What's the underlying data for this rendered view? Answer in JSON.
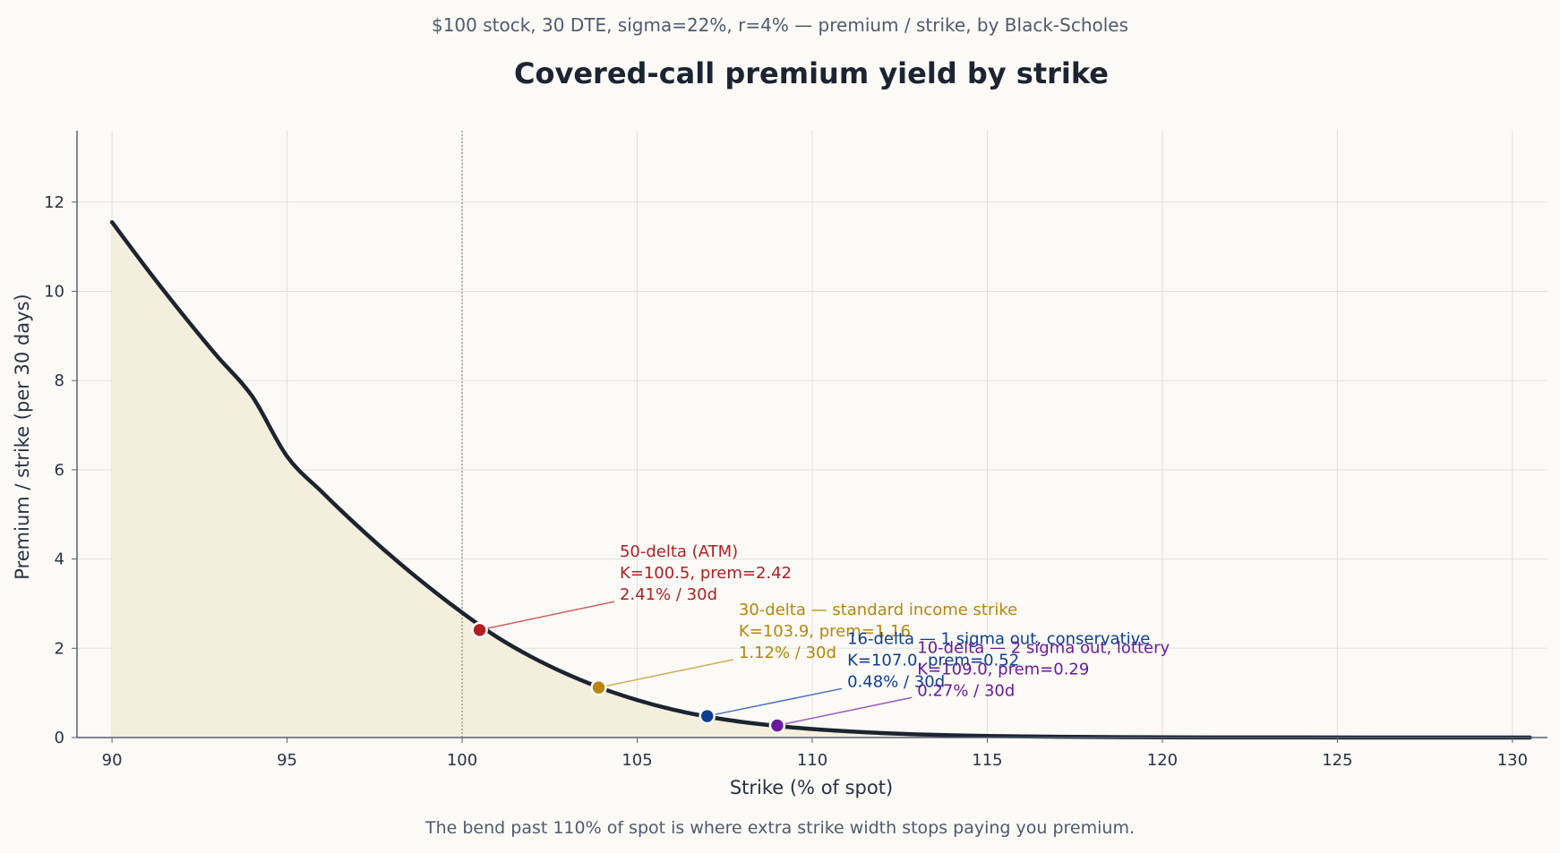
{
  "subtitle": "$100 stock, 30 DTE, sigma=22%, r=4% — premium / strike, by Black-Scholes",
  "caption": "The bend past 110% of spot is where extra strike width stops paying you premium.",
  "colors": {
    "curve": "#1c2331",
    "fill": "#f4eedc",
    "grid": "#e4e1d8",
    "axis": "#5a6070",
    "atm_line": "#8a8a8a",
    "background": "#fbfaf6"
  },
  "chart_data": {
    "type": "area",
    "title": "Covered-call premium yield by strike",
    "xlabel": "Strike (% of spot)",
    "ylabel": "Premium / strike  (per 30 days)",
    "xlim": [
      89,
      131
    ],
    "ylim": [
      0,
      13.6
    ],
    "xticks": [
      90,
      95,
      100,
      105,
      110,
      115,
      120,
      125,
      130
    ],
    "yticks": [
      0,
      2,
      4,
      6,
      8,
      10,
      12
    ],
    "grid": true,
    "spot_reference_x": 100,
    "curve_x": [
      90,
      91,
      92,
      93,
      94,
      95,
      96,
      97,
      98,
      99,
      100,
      101,
      102,
      103,
      104,
      105,
      106,
      107,
      108,
      109,
      110,
      111,
      112,
      113,
      114,
      115,
      116,
      117,
      118,
      119,
      120,
      122,
      124,
      126,
      128,
      130.5
    ],
    "curve_y": [
      11.55,
      10.5,
      9.5,
      8.55,
      7.65,
      6.3,
      5.5,
      4.75,
      4.05,
      3.4,
      2.8,
      2.25,
      1.8,
      1.42,
      1.1,
      0.84,
      0.63,
      0.47,
      0.35,
      0.26,
      0.19,
      0.14,
      0.1,
      0.07,
      0.05,
      0.035,
      0.025,
      0.018,
      0.012,
      0.008,
      0.005,
      0.003,
      0.002,
      0.001,
      0.001,
      0.0
    ],
    "annotations": [
      {
        "name": "50-delta",
        "x": 100.5,
        "y": 2.41,
        "lines": [
          "50-delta (ATM)",
          "K=100.5, prem=2.42",
          "2.41% / 30d"
        ],
        "color": "#b01f24",
        "leader_color": "#d06060",
        "text_x": 104.5,
        "text_y": 4.05
      },
      {
        "name": "30-delta",
        "x": 103.9,
        "y": 1.12,
        "lines": [
          "30-delta — standard income strike",
          "K=103.9, prem=1.16",
          "1.12% / 30d"
        ],
        "color": "#b8860b",
        "leader_color": "#d2aa55",
        "text_x": 107.9,
        "text_y": 2.75
      },
      {
        "name": "16-delta",
        "x": 107.0,
        "y": 0.48,
        "lines": [
          "16-delta — 1 sigma out, conservative",
          "K=107.0, prem=0.52",
          "0.48% / 30d"
        ],
        "color": "#0d3f91",
        "leader_color": "#4a72c0",
        "text_x": 111.0,
        "text_y": 2.1
      },
      {
        "name": "10-delta",
        "x": 109.0,
        "y": 0.27,
        "lines": [
          "10-delta — 2 sigma out, lottery",
          "K=109.0, prem=0.29",
          "0.27% / 30d"
        ],
        "color": "#6a1b9a",
        "leader_color": "#9d5cc4",
        "text_x": 113.0,
        "text_y": 1.9
      }
    ]
  }
}
